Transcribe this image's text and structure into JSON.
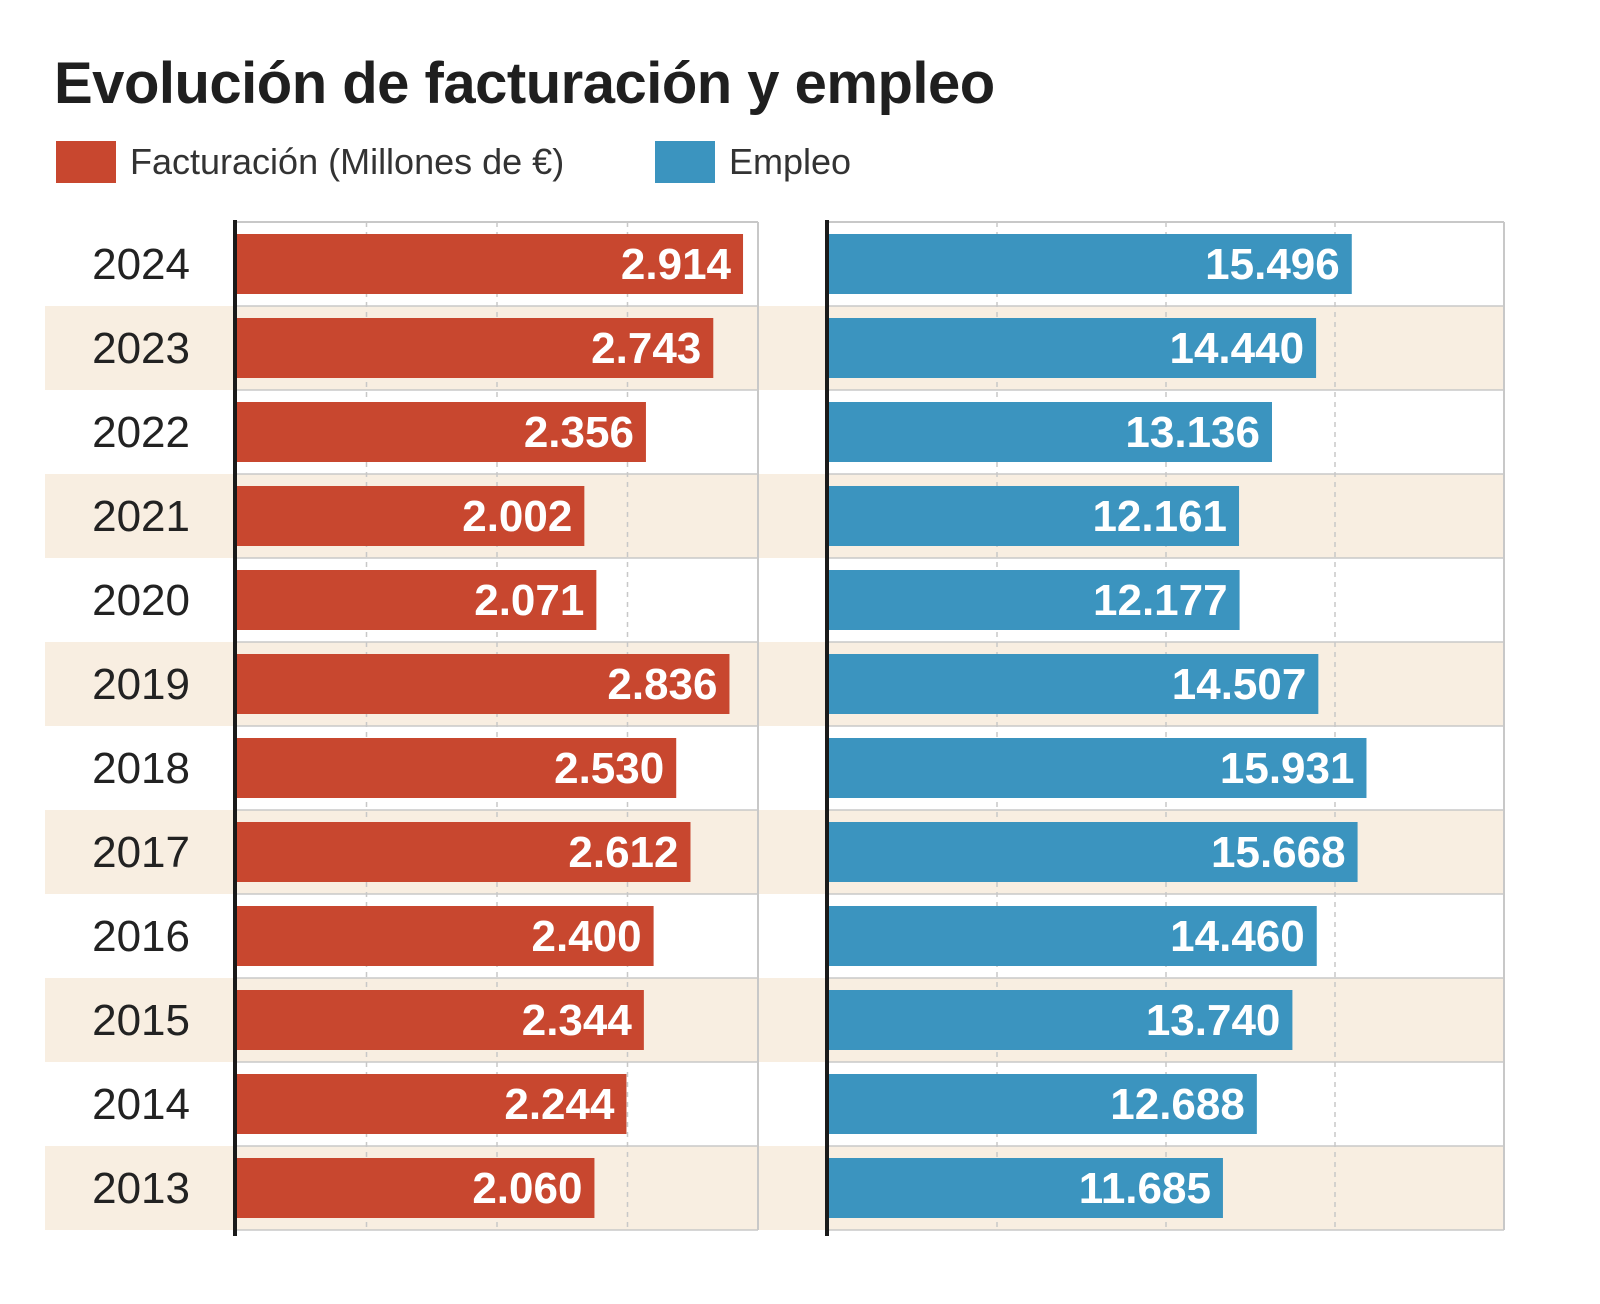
{
  "colors": {
    "revenue": "#c8472f",
    "employment": "#3b94bf",
    "stripe": "#f8eee1",
    "grid": "#c8c8c8",
    "axis": "#1a1a1a",
    "label": "#222222",
    "value_text": "#ffffff"
  },
  "chart_data": {
    "type": "bar",
    "orientation": "horizontal",
    "title": "Evolución de facturación y empleo",
    "categories": [
      "2024",
      "2023",
      "2022",
      "2021",
      "2020",
      "2019",
      "2018",
      "2017",
      "2016",
      "2015",
      "2014",
      "2013"
    ],
    "series": [
      {
        "name": "Facturación (Millones de €)",
        "values": [
          2914,
          2743,
          2356,
          2002,
          2071,
          2836,
          2530,
          2612,
          2400,
          2344,
          2244,
          2060
        ],
        "labels": [
          "2.914",
          "2.743",
          "2.356",
          "2.002",
          "2.071",
          "2.836",
          "2.530",
          "2.612",
          "2.400",
          "2.344",
          "2.244",
          "2.060"
        ],
        "xlim": [
          0,
          3000
        ],
        "color": "#c8472f"
      },
      {
        "name": "Empleo",
        "values": [
          15496,
          14440,
          13136,
          12161,
          12177,
          14507,
          15931,
          15668,
          14460,
          13740,
          12688,
          11685
        ],
        "labels": [
          "15.496",
          "14.440",
          "13.136",
          "12.161",
          "12.177",
          "14.507",
          "15.931",
          "15.668",
          "14.460",
          "13.740",
          "12.688",
          "11.685"
        ],
        "xlim": [
          0,
          20000
        ],
        "color": "#3b94bf"
      }
    ],
    "legend_position": "top-left",
    "grid": true
  }
}
